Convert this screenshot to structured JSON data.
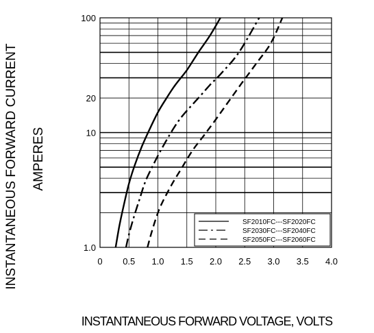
{
  "chart_data": {
    "type": "line",
    "ylabel_line1": "INSTANTANEOUS FORWARD CURRENT",
    "ylabel_line2": "AMPERES",
    "xlabel": "INSTANTANEOUS FORWARD VOLTAGE,  VOLTS",
    "x_scale": "linear",
    "y_scale": "log",
    "xlim": [
      0,
      4.0
    ],
    "ylim": [
      1.0,
      100
    ],
    "x_ticks": [
      {
        "value": 0,
        "label": "0"
      },
      {
        "value": 0.5,
        "label": "0.5"
      },
      {
        "value": 1.0,
        "label": "1.0"
      },
      {
        "value": 1.5,
        "label": "1.5"
      },
      {
        "value": 2.0,
        "label": "2.0"
      },
      {
        "value": 2.5,
        "label": "2.5"
      },
      {
        "value": 3.0,
        "label": "3.0"
      },
      {
        "value": 3.5,
        "label": "3.5"
      },
      {
        "value": 4.0,
        "label": "4.0"
      }
    ],
    "y_ticks": [
      {
        "value": 1.0,
        "label": "1.0"
      },
      {
        "value": 10,
        "label": "10"
      },
      {
        "value": 20,
        "label": "20"
      },
      {
        "value": 100,
        "label": "100"
      }
    ],
    "grid": true,
    "legend_position": "bottom-right",
    "series": [
      {
        "name": "SF2010FC---SF2020FC",
        "dash": "solid",
        "color": "#000000",
        "x": [
          0.27,
          0.33,
          0.4,
          0.5,
          0.6,
          0.72,
          0.85,
          1.0,
          1.15,
          1.3,
          1.5,
          1.7,
          1.9,
          2.08
        ],
        "y": [
          1.0,
          1.5,
          2.2,
          3.6,
          5.2,
          7.5,
          10.5,
          15,
          20,
          26,
          35,
          50,
          70,
          100
        ]
      },
      {
        "name": "SF2030FC---SF2040FC",
        "dash": "dashdot",
        "color": "#000000",
        "x": [
          0.45,
          0.5,
          0.58,
          0.68,
          0.78,
          0.9,
          1.05,
          1.2,
          1.35,
          1.5,
          1.7,
          1.9,
          2.1,
          2.4,
          2.75
        ],
        "y": [
          1.0,
          1.3,
          1.8,
          2.6,
          3.7,
          5.0,
          7.0,
          9.5,
          12.5,
          15.5,
          20,
          26,
          33,
          50,
          100
        ]
      },
      {
        "name": "SF2050FC---SF2060FC",
        "dash": "dashed",
        "color": "#000000",
        "x": [
          0.82,
          0.9,
          1.0,
          1.1,
          1.25,
          1.4,
          1.6,
          1.8,
          2.0,
          2.2,
          2.45,
          2.7,
          2.95,
          3.15
        ],
        "y": [
          1.0,
          1.4,
          2.0,
          2.6,
          3.6,
          4.8,
          7.0,
          9.5,
          13,
          18,
          27,
          40,
          60,
          100
        ]
      }
    ]
  }
}
